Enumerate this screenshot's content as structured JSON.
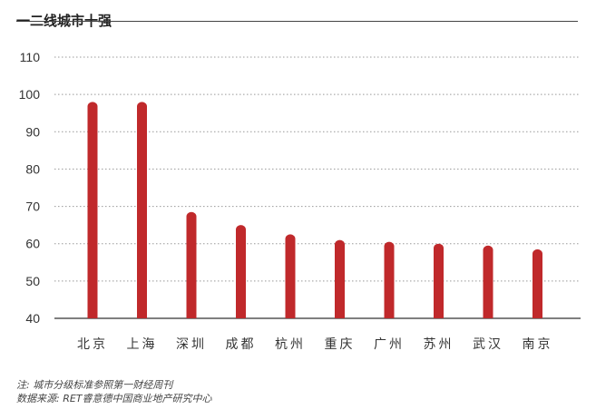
{
  "title": "一二线城市十强",
  "notes": {
    "note": "注: 城市分级标准参照第一财经周刊",
    "source": "数据来源: RET睿意德中国商业地产研究中心"
  },
  "colors": {
    "bar": "#c0292b",
    "axis": "#555555",
    "grid": "#999999"
  },
  "chart_data": {
    "type": "bar",
    "categories": [
      "北京",
      "上海",
      "深圳",
      "成都",
      "杭州",
      "重庆",
      "广州",
      "苏州",
      "武汉",
      "南京"
    ],
    "values": [
      98,
      98,
      68.5,
      65,
      62.5,
      61,
      60.5,
      60,
      59.5,
      58.5
    ],
    "ylim": [
      40,
      110
    ],
    "yticks": [
      40,
      50,
      60,
      70,
      80,
      90,
      100,
      110
    ],
    "grid": true,
    "legend": "none"
  }
}
